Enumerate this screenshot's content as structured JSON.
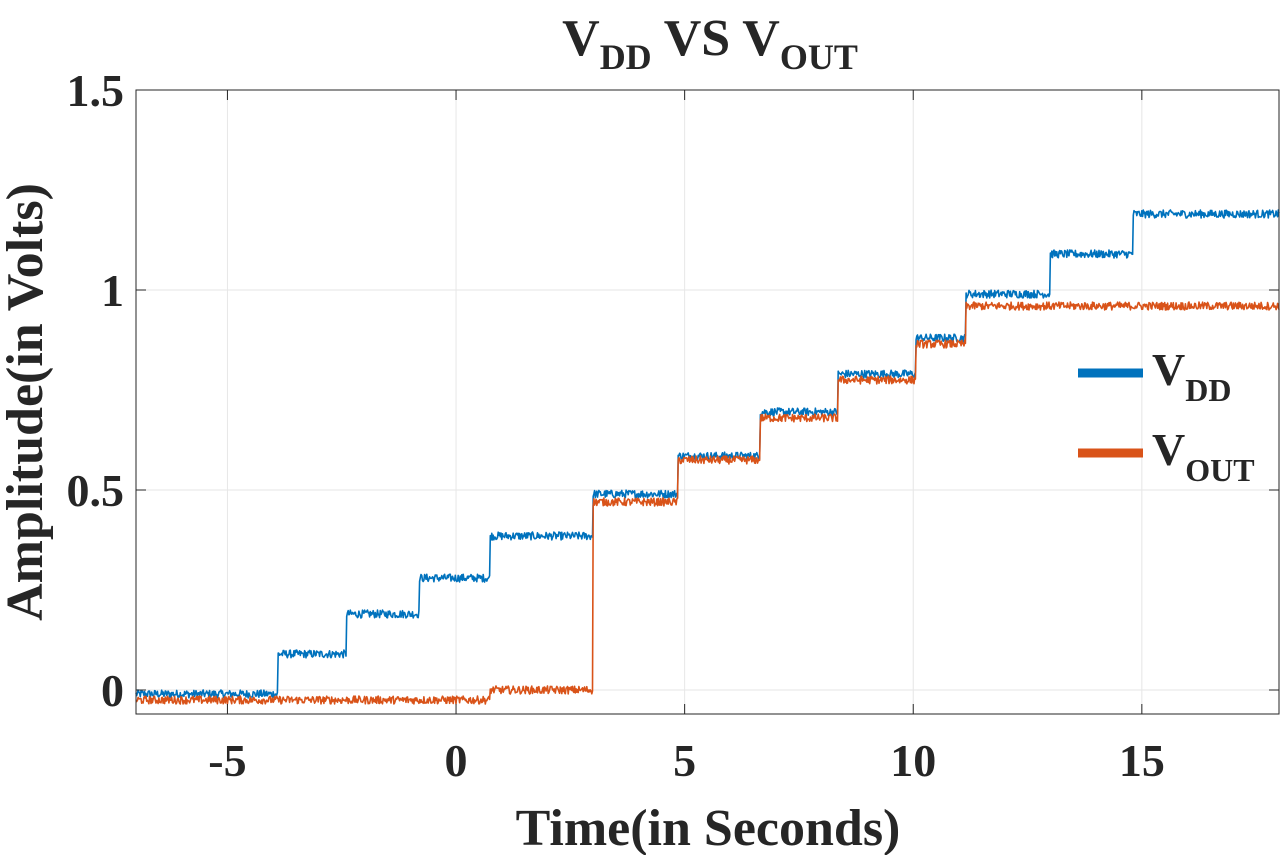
{
  "chart_data": {
    "type": "line",
    "title": {
      "main": "V",
      "sub1": "DD",
      "mid": " VS V",
      "sub2": "OUT"
    },
    "xlabel": "Time(in Seconds)",
    "ylabel": "Amplitude(in Volts)",
    "xlim": [
      -7,
      18
    ],
    "ylim": [
      -0.06,
      1.5
    ],
    "xticks": [
      -5,
      0,
      5,
      10,
      15
    ],
    "xtick_labels": [
      "-5",
      "0",
      "5",
      "10",
      "15"
    ],
    "yticks": [
      0,
      0.5,
      1,
      1.5
    ],
    "ytick_labels": [
      "0",
      "0.5",
      "1",
      "1.5"
    ],
    "grid": true,
    "legend_position": "right",
    "series": [
      {
        "name": {
          "main": "V",
          "sub": "DD"
        },
        "color": "#0072BD",
        "noise": 0.01,
        "steps": [
          [
            -7,
            -0.01
          ],
          [
            -3.9,
            0.09
          ],
          [
            -2.4,
            0.19
          ],
          [
            -0.8,
            0.28
          ],
          [
            0.75,
            0.385
          ],
          [
            3.0,
            0.49
          ],
          [
            4.85,
            0.585
          ],
          [
            6.65,
            0.695
          ],
          [
            8.35,
            0.79
          ],
          [
            10.05,
            0.88
          ],
          [
            11.15,
            0.99
          ],
          [
            13.0,
            1.09
          ],
          [
            14.8,
            1.19
          ]
        ]
      },
      {
        "name": {
          "main": "V",
          "sub": "OUT"
        },
        "color": "#D95319",
        "noise": 0.01,
        "steps": [
          [
            -7,
            -0.025
          ],
          [
            0.75,
            0.0
          ],
          [
            3.0,
            0.47
          ],
          [
            4.85,
            0.575
          ],
          [
            6.65,
            0.68
          ],
          [
            8.35,
            0.775
          ],
          [
            10.05,
            0.865
          ],
          [
            11.15,
            0.96
          ]
        ]
      }
    ]
  }
}
